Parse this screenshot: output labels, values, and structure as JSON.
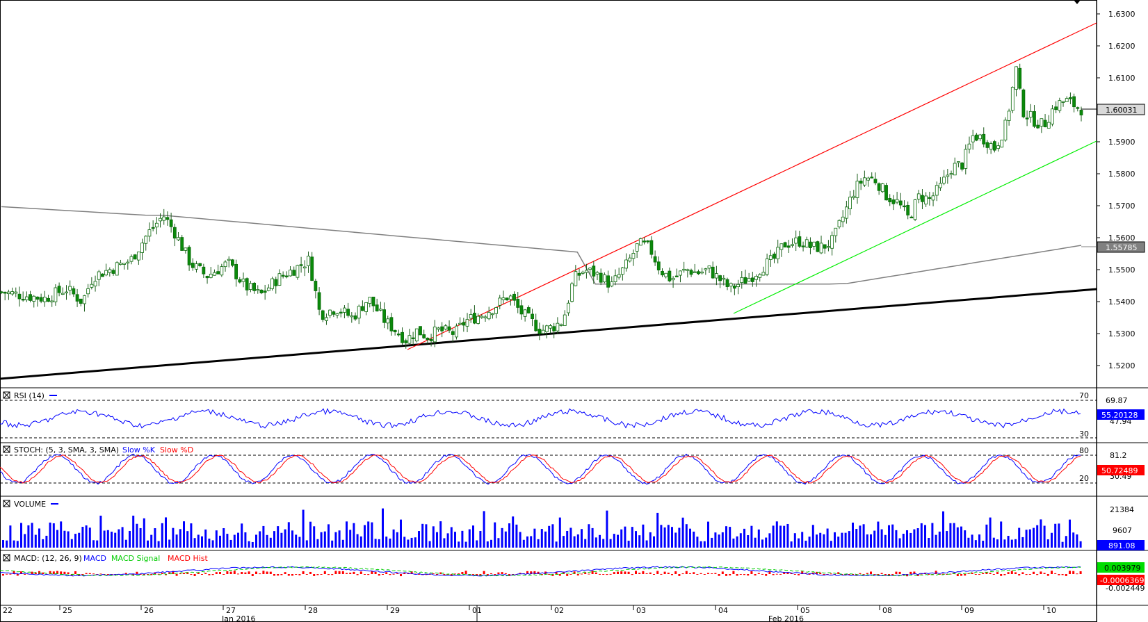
{
  "price_axis": {
    "ticks": [
      "1.6300",
      "1.6200",
      "1.6100",
      "1.5900",
      "1.5800",
      "1.5700",
      "1.5600",
      "1.5500",
      "1.5400",
      "1.5300",
      "1.5200"
    ],
    "last_price": "1.60031",
    "ma_value": "1.55785"
  },
  "rsi": {
    "label": "RSI (14)",
    "level_high": "70",
    "level_low": "30",
    "scale_top": "69.87",
    "current": "55.20128",
    "scale_low": "47.94"
  },
  "stoch": {
    "label": "STOCH: (5, 3, SMA, 3, SMA)",
    "k_label": "Slow %K",
    "d_label": "Slow %D",
    "level_high": "80",
    "level_low": "20",
    "scale_top": "81.2",
    "current": "50.72489",
    "scale_low": "30.49"
  },
  "volume": {
    "label": "VOLUME",
    "scale_top": "21384",
    "scale_mid": "9607",
    "current": "891.08"
  },
  "macd": {
    "label": "MACD: (12, 26, 9)",
    "macd_label": "MACD",
    "signal_label": "MACD Signal",
    "hist_label": "MACD Hist",
    "current_signal": "0.003979",
    "current_hist": "-0.0006369",
    "scale_low": "-0.002449"
  },
  "time_axis": {
    "days": [
      "22",
      "25",
      "26",
      "27",
      "28",
      "29",
      "01",
      "02",
      "03",
      "04",
      "05",
      "08",
      "09",
      "10"
    ],
    "months": [
      "Jan 2016",
      "Feb 2016"
    ]
  },
  "colors": {
    "candle": "#0a8a0a",
    "red_channel": "#ff0000",
    "green_channel": "#00ee00",
    "trendline": "#000000",
    "ma": "#808080",
    "rsi": "#0000ff",
    "stoch_k": "#0000ff",
    "stoch_d": "#ff0000",
    "volume": "#0000ff",
    "macd": "#0000ff",
    "signal": "#00cc00",
    "hist": "#ff0000"
  },
  "chart_data": {
    "type": "candlestick",
    "x_range": [
      "22 Jan 2016",
      "10 Feb 2016"
    ],
    "ylim": [
      1.515,
      1.6305
    ],
    "close_path": [
      [
        0,
        1.543
      ],
      [
        0.02,
        1.542
      ],
      [
        0.04,
        1.541
      ],
      [
        0.06,
        1.544
      ],
      [
        0.075,
        1.54
      ],
      [
        0.085,
        1.548
      ],
      [
        0.1,
        1.55
      ],
      [
        0.12,
        1.553
      ],
      [
        0.135,
        1.561
      ],
      [
        0.15,
        1.567
      ],
      [
        0.16,
        1.562
      ],
      [
        0.175,
        1.552
      ],
      [
        0.19,
        1.548
      ],
      [
        0.21,
        1.552
      ],
      [
        0.225,
        1.545
      ],
      [
        0.24,
        1.542
      ],
      [
        0.255,
        1.547
      ],
      [
        0.27,
        1.55
      ],
      [
        0.285,
        1.553
      ],
      [
        0.295,
        1.536
      ],
      [
        0.31,
        1.538
      ],
      [
        0.325,
        1.535
      ],
      [
        0.34,
        1.541
      ],
      [
        0.355,
        1.534
      ],
      [
        0.365,
        1.531
      ],
      [
        0.375,
        1.528
      ],
      [
        0.385,
        1.531
      ],
      [
        0.395,
        1.529
      ],
      [
        0.405,
        1.531
      ],
      [
        0.42,
        1.53
      ],
      [
        0.43,
        1.534
      ],
      [
        0.445,
        1.536
      ],
      [
        0.455,
        1.538
      ],
      [
        0.47,
        1.542
      ],
      [
        0.48,
        1.537
      ],
      [
        0.49,
        1.534
      ],
      [
        0.5,
        1.531
      ],
      [
        0.51,
        1.532
      ],
      [
        0.52,
        1.534
      ],
      [
        0.53,
        1.547
      ],
      [
        0.54,
        1.55
      ],
      [
        0.555,
        1.548
      ],
      [
        0.565,
        1.545
      ],
      [
        0.58,
        1.552
      ],
      [
        0.59,
        1.558
      ],
      [
        0.6,
        1.557
      ],
      [
        0.61,
        1.55
      ],
      [
        0.62,
        1.547
      ],
      [
        0.635,
        1.55
      ],
      [
        0.645,
        1.549
      ],
      [
        0.655,
        1.55
      ],
      [
        0.665,
        1.547
      ],
      [
        0.675,
        1.544
      ],
      [
        0.685,
        1.546
      ],
      [
        0.695,
        1.548
      ],
      [
        0.705,
        1.551
      ],
      [
        0.715,
        1.553
      ],
      [
        0.725,
        1.558
      ],
      [
        0.74,
        1.559
      ],
      [
        0.75,
        1.557
      ],
      [
        0.76,
        1.557
      ],
      [
        0.77,
        1.559
      ],
      [
        0.78,
        1.567
      ],
      [
        0.79,
        1.575
      ],
      [
        0.8,
        1.579
      ],
      [
        0.81,
        1.578
      ],
      [
        0.82,
        1.573
      ],
      [
        0.83,
        1.571
      ],
      [
        0.84,
        1.566
      ],
      [
        0.85,
        1.573
      ],
      [
        0.86,
        1.572
      ],
      [
        0.87,
        1.576
      ],
      [
        0.88,
        1.582
      ],
      [
        0.89,
        1.583
      ],
      [
        0.9,
        1.592
      ],
      [
        0.91,
        1.591
      ],
      [
        0.92,
        1.588
      ],
      [
        0.93,
        1.595
      ],
      [
        0.94,
        1.613
      ],
      [
        0.945,
        1.6
      ],
      [
        0.955,
        1.597
      ],
      [
        0.965,
        1.595
      ],
      [
        0.975,
        1.601
      ],
      [
        0.985,
        1.603
      ],
      [
        1.0,
        1.60031
      ]
    ],
    "moving_average_last": 1.55785,
    "annotations": [
      {
        "type": "trendline",
        "color": "black",
        "from": [
          0,
          1.5165
        ],
        "to": [
          1,
          1.545
        ]
      },
      {
        "type": "trendline",
        "color": "red",
        "from": [
          0.375,
          1.5265
        ],
        "to": [
          1,
          1.627
        ]
      },
      {
        "type": "trendline",
        "color": "green",
        "from": [
          0.67,
          1.537
        ],
        "to": [
          1,
          1.5905
        ]
      }
    ],
    "rsi_last": 55.20128,
    "stoch_last": 50.72489,
    "volume_last": 891.08,
    "macd_last": 0.003979,
    "macd_hist_last": -0.0006369
  }
}
